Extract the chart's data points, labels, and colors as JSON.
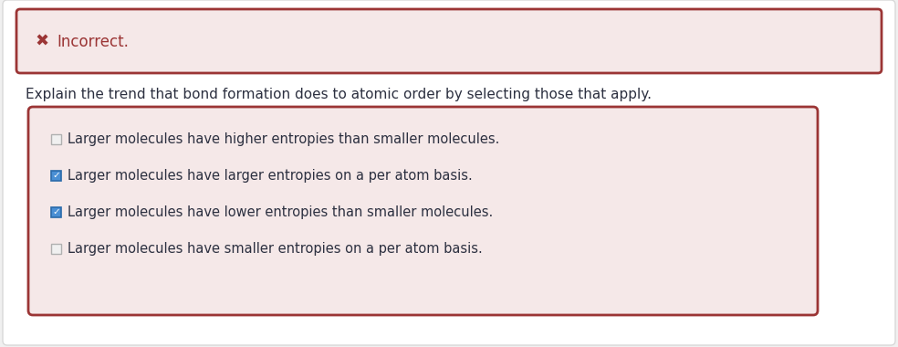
{
  "page_bg": "#f0f0f0",
  "content_bg": "#ffffff",
  "incorrect_box": {
    "bg_color": "#f5e8e8",
    "border_color": "#9b3535",
    "x_icon": "✖",
    "x_icon_color": "#9b3535",
    "text": "Incorrect.",
    "text_color": "#9b3535",
    "text_fontsize": 12
  },
  "question_text": "Explain the trend that bond formation does to atomic order by selecting those that apply.",
  "question_color": "#2c3040",
  "question_fontsize": 11,
  "options_box": {
    "bg_color": "#f5e8e8",
    "border_color": "#9b3535"
  },
  "options": [
    {
      "text": "Larger molecules have higher entropies than smaller molecules.",
      "checked": false
    },
    {
      "text": "Larger molecules have larger entropies on a per atom basis.",
      "checked": true
    },
    {
      "text": "Larger molecules have lower entropies than smaller molecules.",
      "checked": true
    },
    {
      "text": "Larger molecules have smaller entropies on a per atom basis.",
      "checked": false
    }
  ],
  "option_text_color": "#2c3040",
  "option_fontsize": 10.5,
  "checked_box_color": "#4a8fd4",
  "checked_box_border": "#2a6aaa",
  "unchecked_box_color": "#f0f0f0",
  "unchecked_box_border": "#b0b0b0"
}
